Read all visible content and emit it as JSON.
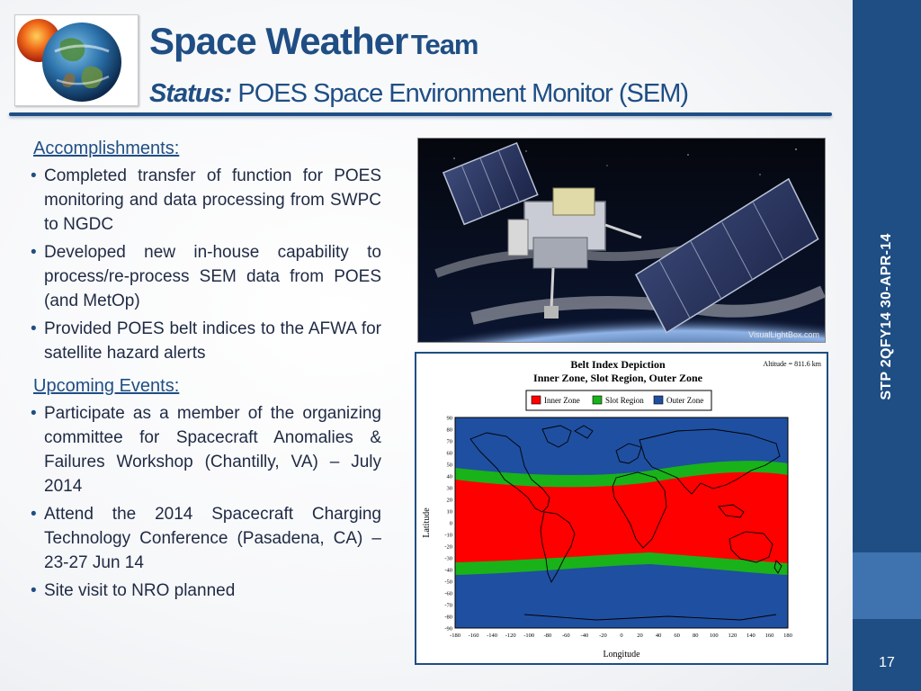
{
  "header": {
    "title_main": "Space Weather",
    "title_team": "Team",
    "subtitle_label": "Status:",
    "subtitle_text": "POES Space Environment Monitor (SEM)",
    "logo": "sun-earth-logo"
  },
  "accomplishments": {
    "heading": "Accomplishments:",
    "items": [
      "Completed transfer of function for POES monitoring and data processing from SWPC to NGDC",
      "Developed new in-house capability to process/re-process SEM data from POES (and MetOp)",
      "Provided POES belt indices to the AFWA for satellite hazard alerts"
    ]
  },
  "upcoming": {
    "heading": "Upcoming Events:",
    "items": [
      "Participate as a member of the organizing committee for Spacecraft Anomalies & Failures Workshop (Chantilly, VA) – July 2014",
      "Attend the 2014 Spacecraft Charging Technology Conference (Pasadena, CA) – 23-27 Jun 14",
      "Site visit to NRO planned"
    ]
  },
  "photo": {
    "watermark": "VisualLightBox.com",
    "subject": "poes-satellite-over-earth"
  },
  "belt_map": {
    "title": "Belt Index Depiction",
    "subtitle": "Inner Zone, Slot Region, Outer Zone",
    "altitude": "Altitude = 811.6 km",
    "legend": [
      {
        "label": "Inner Zone",
        "color": "#ff0000"
      },
      {
        "label": "Slot Region",
        "color": "#19b219"
      },
      {
        "label": "Outer Zone",
        "color": "#1f4fa0"
      }
    ],
    "ylabel": "Latitude",
    "xlabel": "Longitude",
    "yticks": [
      "90",
      "80",
      "70",
      "60",
      "50",
      "40",
      "30",
      "20",
      "10",
      "0",
      "-10",
      "-20",
      "-30",
      "-40",
      "-50",
      "-60",
      "-70",
      "-80",
      "-90"
    ],
    "xticks": [
      "-180",
      "-160",
      "-140",
      "-120",
      "-100",
      "-80",
      "-60",
      "-40",
      "-20",
      "0",
      "20",
      "40",
      "60",
      "80",
      "100",
      "120",
      "140",
      "160",
      "180"
    ]
  },
  "sidebar": {
    "label": "STP 2QFY14 30-APR-14",
    "page_number": "17"
  },
  "colors": {
    "brand_blue": "#1f4e84",
    "band_light": "#3f73b0",
    "inner_zone": "#ff0000",
    "slot_region": "#19b219",
    "outer_zone": "#1f4fa0"
  }
}
